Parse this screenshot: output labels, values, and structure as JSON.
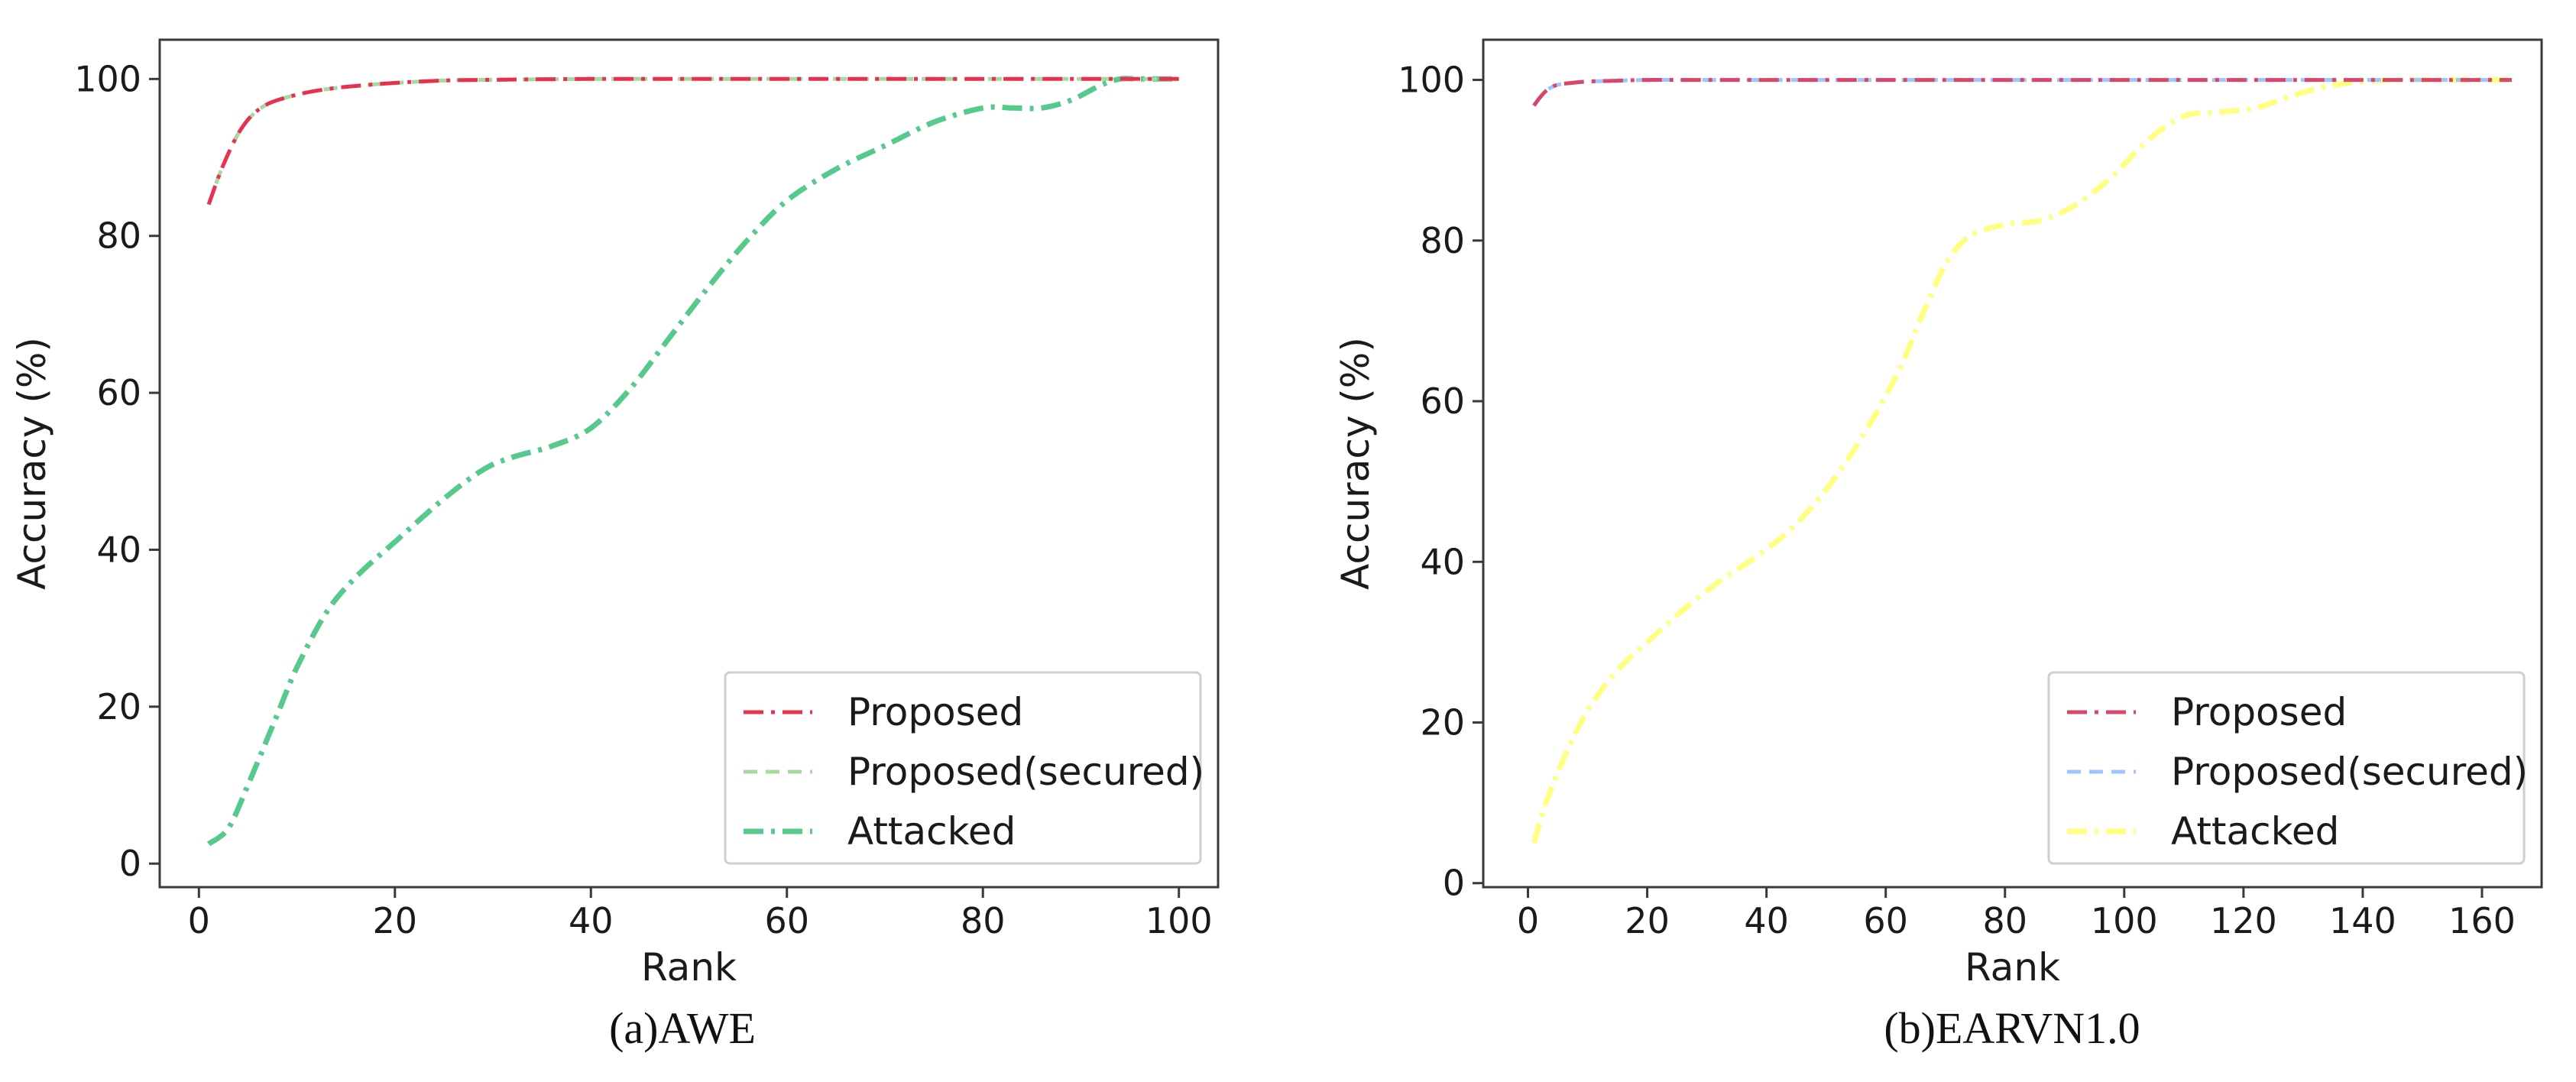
{
  "chart_data": [
    {
      "type": "line",
      "caption": "(a)AWE",
      "xlabel": "Rank",
      "ylabel": "Accuracy (%)",
      "xlim": [
        -4,
        104
      ],
      "ylim": [
        -3,
        105
      ],
      "xticks": [
        0,
        20,
        40,
        60,
        80,
        100
      ],
      "yticks": [
        0,
        20,
        40,
        60,
        80,
        100
      ],
      "legend_position": "lower-right",
      "grid": false,
      "series": [
        {
          "name": "Proposed",
          "color": "#e8304f",
          "style": "dashdot",
          "x": [
            1,
            2,
            3,
            4,
            5,
            6,
            7,
            8,
            10,
            12,
            15,
            20,
            25,
            30,
            40,
            50,
            60,
            70,
            80,
            90,
            100
          ],
          "y": [
            84,
            87.5,
            90.5,
            93,
            94.8,
            96,
            96.8,
            97.3,
            98,
            98.5,
            99,
            99.5,
            99.8,
            99.9,
            100,
            100,
            100,
            100,
            100,
            100,
            100
          ]
        },
        {
          "name": "Proposed(secured)",
          "color": "#a8d8a0",
          "style": "dashed",
          "x": [
            1,
            2,
            3,
            4,
            5,
            6,
            7,
            8,
            10,
            12,
            15,
            20,
            25,
            30,
            40,
            50,
            60,
            70,
            80,
            90,
            100
          ],
          "y": [
            84,
            87.5,
            90.5,
            93,
            94.8,
            96,
            96.8,
            97.3,
            98,
            98.5,
            99,
            99.5,
            99.8,
            99.9,
            100,
            100,
            100,
            100,
            100,
            100,
            100
          ]
        },
        {
          "name": "Attacked",
          "color": "#56c98c",
          "style": "dashdot",
          "x": [
            1,
            3,
            5,
            8,
            10,
            13,
            16,
            20,
            25,
            29,
            32,
            36,
            40,
            44,
            48,
            52,
            56,
            60,
            65,
            70,
            75,
            80,
            83,
            86,
            89,
            92,
            94,
            96,
            100
          ],
          "y": [
            2.5,
            4.5,
            10,
            19,
            25,
            32,
            36.5,
            41,
            46.5,
            50.2,
            51.8,
            53.2,
            55.5,
            60.5,
            67,
            73.5,
            79.5,
            84.5,
            88.5,
            91.5,
            94.5,
            96.3,
            96.3,
            96.3,
            97.3,
            99.2,
            100,
            100,
            100
          ]
        }
      ]
    },
    {
      "type": "line",
      "caption": "(b)EARVN1.0",
      "xlabel": "Rank",
      "ylabel": "Accuracy (%)",
      "xlim": [
        -7.5,
        170
      ],
      "ylim": [
        -0.5,
        105
      ],
      "xticks": [
        0,
        20,
        40,
        60,
        80,
        100,
        120,
        140,
        160
      ],
      "yticks": [
        0,
        20,
        40,
        60,
        80,
        100
      ],
      "legend_position": "lower-right",
      "grid": false,
      "series": [
        {
          "name": "Proposed",
          "color": "#d9466a",
          "style": "dashdot",
          "x": [
            1,
            2,
            3,
            4,
            5,
            7,
            10,
            15,
            20,
            30,
            60,
            100,
            140,
            165
          ],
          "y": [
            96.8,
            97.8,
            98.6,
            99.1,
            99.4,
            99.6,
            99.8,
            99.9,
            100,
            100,
            100,
            100,
            100,
            100
          ]
        },
        {
          "name": "Proposed(secured)",
          "color": "#9ec5ff",
          "style": "dashed",
          "x": [
            1,
            2,
            3,
            4,
            5,
            7,
            10,
            15,
            20,
            30,
            60,
            100,
            140,
            165
          ],
          "y": [
            96.8,
            97.8,
            98.6,
            99.1,
            99.4,
            99.6,
            99.8,
            99.9,
            100,
            100,
            100,
            100,
            100,
            100
          ]
        },
        {
          "name": "Attacked",
          "color": "#ffff80",
          "style": "dashdot",
          "x": [
            1,
            3,
            6,
            10,
            15,
            20,
            26,
            32,
            38,
            44,
            50,
            56,
            62,
            66,
            70,
            74,
            80,
            86,
            92,
            98,
            104,
            110,
            116,
            122,
            128,
            134,
            140,
            146,
            152,
            160,
            165
          ],
          "y": [
            5,
            10,
            15.5,
            21.5,
            26.5,
            30,
            34,
            37.5,
            40.5,
            44,
            49,
            55.5,
            63.5,
            70.5,
            77,
            80.5,
            82,
            82.5,
            84.5,
            88,
            92.5,
            95.5,
            96,
            96.5,
            98,
            99.2,
            99.8,
            100,
            100,
            100,
            100
          ]
        }
      ]
    }
  ]
}
